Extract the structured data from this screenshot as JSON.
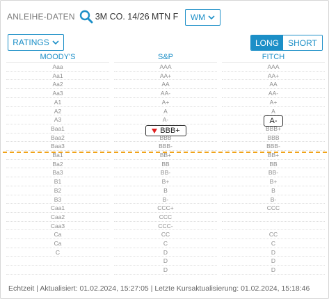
{
  "header": {
    "label": "ANLEIHE-DATEN",
    "bond_name": "3M CO. 14/26 MTN F",
    "exchange_select": "WM",
    "search_icon": "search-icon"
  },
  "controls": {
    "ratings_select": "RATINGS",
    "toggle_long": "LONG",
    "toggle_short": "SHORT",
    "active_toggle": "LONG"
  },
  "columns": {
    "moodys": "MOODY'S",
    "sp": "S&P",
    "fitch": "FITCH"
  },
  "scale": {
    "moodys": [
      "Aaa",
      "Aa1",
      "Aa2",
      "Aa3",
      "A1",
      "A2",
      "A3",
      "Baa1",
      "Baa2",
      "Baa3",
      "Ba1",
      "Ba2",
      "Ba3",
      "B1",
      "B2",
      "B3",
      "Caa1",
      "Caa2",
      "Caa3",
      "Ca",
      "Ca",
      "C",
      "",
      ""
    ],
    "sp": [
      "AAA",
      "AA+",
      "AA",
      "AA-",
      "A+",
      "A",
      "A-",
      "BBB+",
      "BBB",
      "BBB-",
      "BB+",
      "BB",
      "BB-",
      "B+",
      "B",
      "B-",
      "CCC+",
      "CCC",
      "CCC-",
      "CC",
      "C",
      "D",
      "D",
      "D"
    ],
    "fitch": [
      "AAA",
      "AA+",
      "AA",
      "AA-",
      "A+",
      "A",
      "A-",
      "BBB+",
      "BBB",
      "BBB-",
      "BB+",
      "BB",
      "BB-",
      "B+",
      "B",
      "B-",
      "CCC",
      "",
      "",
      "CC",
      "C",
      "D",
      "D",
      "D"
    ]
  },
  "current_ratings": {
    "sp": {
      "value": "BBB+",
      "trend": "down"
    },
    "fitch": {
      "value": "A-"
    }
  },
  "colors": {
    "accent": "#1c8fc7",
    "threshold_line": "#f0a31a",
    "downgrade_arrow": "#e02020"
  },
  "footer": {
    "text": "Echtzeit | Aktualisiert: 01.02.2024, 15:27:05 | Letzte Kursaktualisierung: 01.02.2024, 15:18:46"
  }
}
